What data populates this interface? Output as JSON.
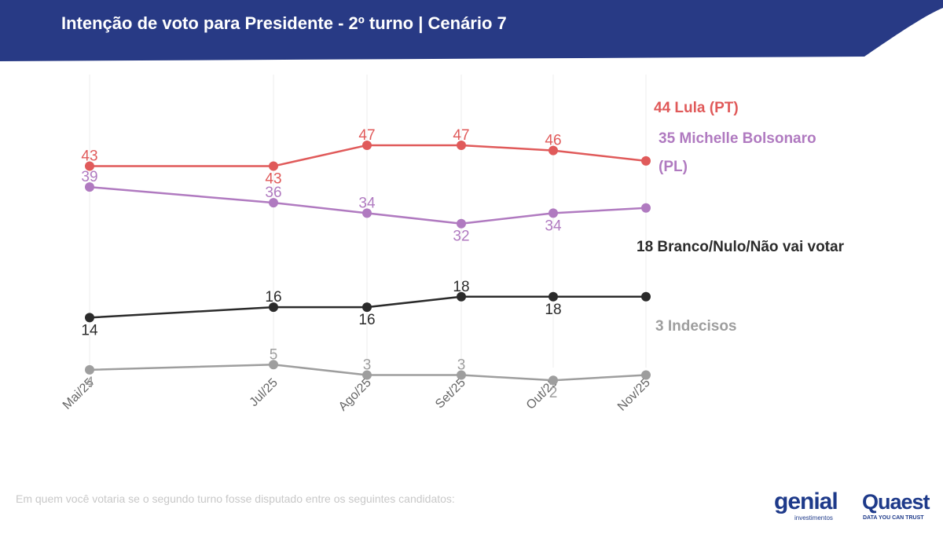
{
  "header": {
    "title": "Intenção de voto para Presidente - 2º turno | Cenário 7",
    "bg_color": "#283a85"
  },
  "footnote": "Em quem você votaria se o segundo turno fosse disputado entre os seguintes candidatos:",
  "logos": {
    "genial": "genial",
    "genial_sub": "investimentos",
    "quaest": "Quaest",
    "quaest_sub": "DATA YOU CAN TRUST"
  },
  "chart_data": {
    "type": "line",
    "categories": [
      "Mai/25",
      "Jul/25",
      "Ago/25",
      "Set/25",
      "Out/25",
      "Nov/25"
    ],
    "grid": "vertical",
    "ylim": [
      0,
      50
    ],
    "series": [
      {
        "name": "Lula (PT)",
        "end_label": "44 Lula (PT)",
        "color": "#e05a5a",
        "values": [
          43,
          43,
          47,
          47,
          46,
          44
        ],
        "label_pos": [
          "above",
          "below",
          "above",
          "above",
          "above",
          null
        ]
      },
      {
        "name": "Michelle Bolsonaro (PL)",
        "end_label": "35 Michelle Bolsonaro (PL)",
        "end_label_lines": [
          "35 Michelle Bolsonaro",
          "(PL)"
        ],
        "color": "#b07ac0",
        "values": [
          39,
          36,
          34,
          32,
          34,
          35
        ],
        "label_pos": [
          "above",
          "above",
          "above",
          "below",
          "below",
          null
        ]
      },
      {
        "name": "Branco/Nulo/Não vai votar",
        "end_label": "18 Branco/Nulo/Não vai votar",
        "color": "#2b2b2b",
        "values": [
          14,
          16,
          16,
          18,
          18,
          18
        ],
        "label_pos": [
          "below",
          "above",
          "below",
          "above",
          "below",
          null
        ]
      },
      {
        "name": "Indecisos",
        "end_label": "3 Indecisos",
        "color": "#9e9e9e",
        "values": [
          4,
          5,
          3,
          3,
          2,
          3
        ],
        "label_pos": [
          "below",
          "above",
          "above",
          "above",
          "below",
          null
        ]
      }
    ]
  }
}
